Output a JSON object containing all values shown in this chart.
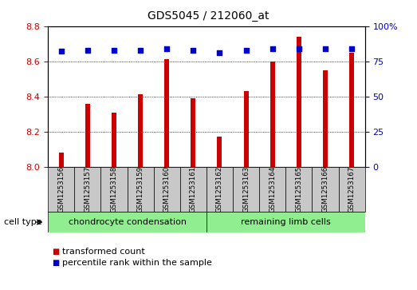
{
  "title": "GDS5045 / 212060_at",
  "categories": [
    "GSM1253156",
    "GSM1253157",
    "GSM1253158",
    "GSM1253159",
    "GSM1253160",
    "GSM1253161",
    "GSM1253162",
    "GSM1253163",
    "GSM1253164",
    "GSM1253165",
    "GSM1253166",
    "GSM1253167"
  ],
  "bar_values": [
    8.08,
    8.36,
    8.31,
    8.41,
    8.61,
    8.39,
    8.17,
    8.43,
    8.6,
    8.74,
    8.55,
    8.65
  ],
  "percentile_values": [
    82,
    83,
    83,
    83,
    84,
    83,
    81,
    83,
    84,
    84,
    84,
    84
  ],
  "bar_color": "#cc0000",
  "percentile_color": "#0000cc",
  "ylim_left": [
    8.0,
    8.8
  ],
  "ylim_right": [
    0,
    100
  ],
  "yticks_left": [
    8.0,
    8.2,
    8.4,
    8.6,
    8.8
  ],
  "yticks_right": [
    0,
    25,
    50,
    75,
    100
  ],
  "ytick_labels_right": [
    "0",
    "25",
    "50",
    "75",
    "100%"
  ],
  "grid_values": [
    8.2,
    8.4,
    8.6
  ],
  "cell_type_groups": [
    {
      "label": "chondrocyte condensation",
      "start": 0,
      "end": 5
    },
    {
      "label": "remaining limb cells",
      "start": 6,
      "end": 11
    }
  ],
  "cell_type_label": "cell type",
  "legend_items": [
    {
      "label": "transformed count",
      "color": "#cc0000"
    },
    {
      "label": "percentile rank within the sample",
      "color": "#0000cc"
    }
  ],
  "bar_width": 0.18,
  "xlabel_color": "#cc0000",
  "ylabel_right_color": "#0000cc",
  "tick_bg_color": "#c8c8c8",
  "cell_bg_color": "#90ee90",
  "plot_bg_color": "#ffffff"
}
